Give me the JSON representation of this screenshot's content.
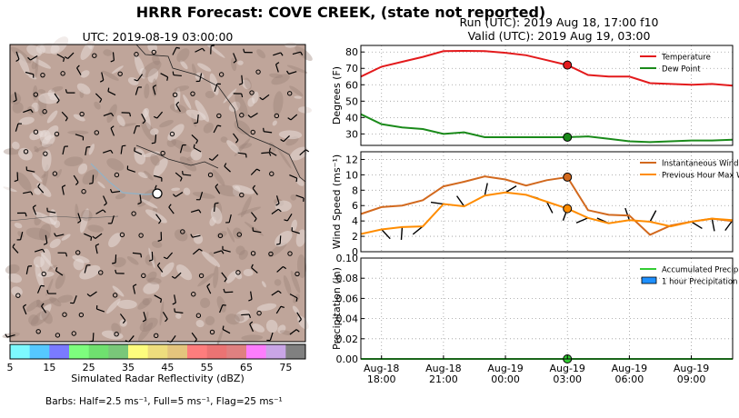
{
  "header": {
    "title": "HRRR Forecast: COVE CREEK, (state not reported)",
    "run": "Run (UTC): 2019 Aug 18, 17:00 f10",
    "valid": "Valid (UTC): 2019 Aug 19, 03:00"
  },
  "map": {
    "title": "UTC: 2019-08-19 03:00:00",
    "colorbar_label": "Simulated Radar Reflectivity (dBZ)",
    "colorbar_ticks": [
      "5",
      "15",
      "25",
      "35",
      "45",
      "55",
      "65",
      "75"
    ],
    "colorbar_colors": [
      "#7df9ff",
      "#55c8ff",
      "#7a7aff",
      "#7dfd7d",
      "#6fe06f",
      "#79c779",
      "#fdfd7d",
      "#eedd7d",
      "#e4c47d",
      "#fd7d7d",
      "#ea7373",
      "#df8080",
      "#fd7dfd",
      "#c9a5e6",
      "#808080"
    ],
    "barbs_note": "Barbs: Half=2.5 ms⁻¹, Full=5 ms⁻¹, Flag=25 ms⁻¹",
    "terrain_color": "#bfa59a"
  },
  "x_ticks": [
    "Aug-18\n18:00",
    "Aug-18\n21:00",
    "Aug-19\n00:00",
    "Aug-19\n03:00",
    "Aug-19\n06:00",
    "Aug-19\n09:00"
  ],
  "chart_data": [
    {
      "type": "line",
      "title": "",
      "xlabel": "",
      "ylabel": "Degrees (F)",
      "x": [
        "2019-08-18 17:00",
        "2019-08-18 18:00",
        "2019-08-18 19:00",
        "2019-08-18 20:00",
        "2019-08-18 21:00",
        "2019-08-18 22:00",
        "2019-08-18 23:00",
        "2019-08-19 00:00",
        "2019-08-19 01:00",
        "2019-08-19 02:00",
        "2019-08-19 03:00",
        "2019-08-19 04:00",
        "2019-08-19 05:00",
        "2019-08-19 06:00",
        "2019-08-19 07:00",
        "2019-08-19 08:00",
        "2019-08-19 09:00",
        "2019-08-19 10:00",
        "2019-08-19 11:00"
      ],
      "ylim": [
        23,
        84
      ],
      "yticks": [
        30,
        40,
        50,
        60,
        70,
        80
      ],
      "grid": true,
      "legend": "top-right",
      "series": [
        {
          "name": "Temperature",
          "color": "#e31a1c",
          "values": [
            65,
            71,
            74,
            77,
            80.5,
            80.7,
            80.5,
            79.5,
            78,
            75,
            72,
            66,
            65,
            65,
            61,
            60.5,
            60,
            60.5,
            59.5
          ]
        },
        {
          "name": "Dew Point",
          "color": "#1a8a1a",
          "values": [
            42,
            36,
            34,
            33,
            30,
            31,
            28,
            28,
            28,
            28,
            28,
            28.5,
            27,
            25.5,
            25,
            25.5,
            26,
            26,
            26.5
          ]
        }
      ],
      "markers": [
        {
          "series": "Temperature",
          "x": "2019-08-19 03:00",
          "y": 72
        },
        {
          "series": "Dew Point",
          "x": "2019-08-19 03:00",
          "y": 28
        }
      ]
    },
    {
      "type": "line",
      "title": "",
      "xlabel": "",
      "ylabel": "Wind Speed (ms⁻¹)",
      "x": [
        "2019-08-18 17:00",
        "2019-08-18 18:00",
        "2019-08-18 19:00",
        "2019-08-18 20:00",
        "2019-08-18 21:00",
        "2019-08-18 22:00",
        "2019-08-18 23:00",
        "2019-08-19 00:00",
        "2019-08-19 01:00",
        "2019-08-19 02:00",
        "2019-08-19 03:00",
        "2019-08-19 04:00",
        "2019-08-19 05:00",
        "2019-08-19 06:00",
        "2019-08-19 07:00",
        "2019-08-19 08:00",
        "2019-08-19 09:00",
        "2019-08-19 10:00",
        "2019-08-19 11:00"
      ],
      "ylim": [
        0,
        13
      ],
      "yticks": [
        0,
        2,
        4,
        6,
        8,
        10,
        12
      ],
      "grid": true,
      "legend": "top-right",
      "series": [
        {
          "name": "Instantaneous Wind Gust",
          "color": "#d2691e",
          "values": [
            4.9,
            5.8,
            6.0,
            6.7,
            8.5,
            9.1,
            9.8,
            9.4,
            8.6,
            9.3,
            9.7,
            5.4,
            4.8,
            4.7,
            2.2,
            3.4,
            3.9,
            4.3,
            4.0
          ]
        },
        {
          "name": "Previous Hour Max Wind",
          "color": "#ff8c00",
          "values": [
            2.3,
            2.9,
            3.2,
            3.3,
            6.2,
            5.9,
            7.3,
            7.7,
            7.4,
            6.5,
            5.6,
            4.4,
            3.7,
            4.1,
            3.9,
            3.3,
            3.9,
            4.3,
            4.1
          ]
        }
      ],
      "markers": [
        {
          "series": "Instantaneous Wind Gust",
          "x": "2019-08-19 03:00",
          "y": 9.7
        },
        {
          "series": "Previous Hour Max Wind",
          "x": "2019-08-19 03:00",
          "y": 5.6
        }
      ]
    },
    {
      "type": "line",
      "title": "",
      "xlabel": "",
      "ylabel": "Precipitation (in)",
      "x": [
        "2019-08-18 17:00",
        "2019-08-18 18:00",
        "2019-08-18 19:00",
        "2019-08-18 20:00",
        "2019-08-18 21:00",
        "2019-08-18 22:00",
        "2019-08-18 23:00",
        "2019-08-19 00:00",
        "2019-08-19 01:00",
        "2019-08-19 02:00",
        "2019-08-19 03:00",
        "2019-08-19 04:00",
        "2019-08-19 05:00",
        "2019-08-19 06:00",
        "2019-08-19 07:00",
        "2019-08-19 08:00",
        "2019-08-19 09:00",
        "2019-08-19 10:00",
        "2019-08-19 11:00"
      ],
      "ylim": [
        0,
        0.1
      ],
      "ytick_labels": [
        "0.00",
        "0.02",
        "0.04",
        "0.06",
        "0.08",
        "0.10"
      ],
      "grid": true,
      "legend": "top-right",
      "series": [
        {
          "name": "Accumulated Precipitation",
          "color": "#33cc33",
          "values": [
            0,
            0,
            0,
            0,
            0,
            0,
            0,
            0,
            0,
            0,
            0,
            0,
            0,
            0,
            0,
            0,
            0,
            0,
            0
          ]
        },
        {
          "name": "1 hour Precipitation",
          "color": "#1e90ff",
          "values": [
            0,
            0,
            0,
            0,
            0,
            0,
            0,
            0,
            0,
            0,
            0,
            0,
            0,
            0,
            0,
            0,
            0,
            0,
            0
          ]
        }
      ],
      "markers": [
        {
          "series": "Accumulated Precipitation",
          "x": "2019-08-19 03:00",
          "y": 0
        }
      ]
    }
  ]
}
